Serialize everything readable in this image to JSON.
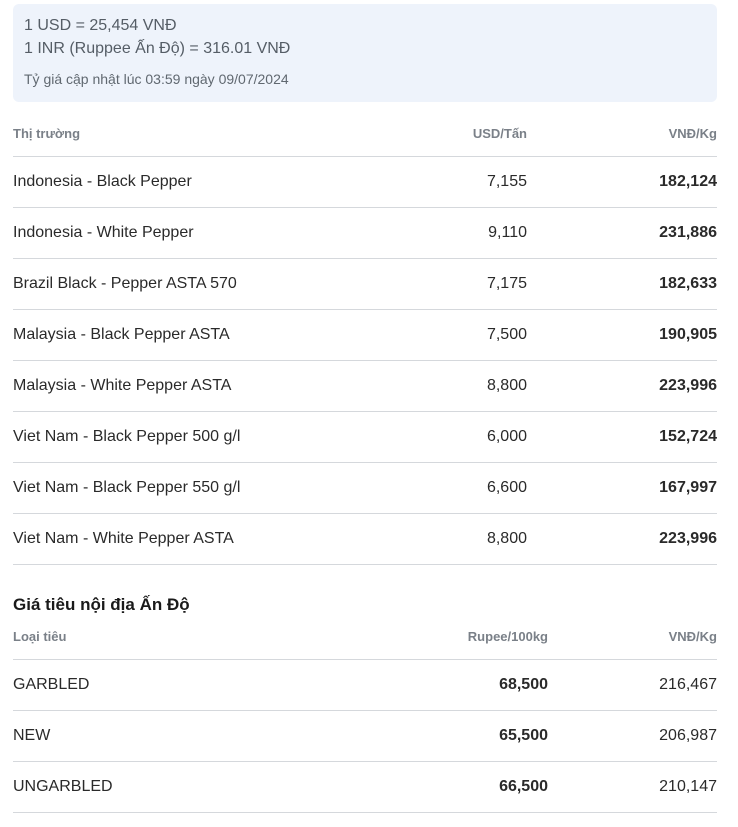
{
  "rates": {
    "usd": "1 USD = 25,454 VNĐ",
    "inr": "1 INR (Ruppee Ấn Độ) = 316.01 VNĐ",
    "updated": "Tỷ giá cập nhật lúc 03:59 ngày 09/07/2024"
  },
  "world_table": {
    "headers": {
      "market": "Thị trường",
      "usd": "USD/Tấn",
      "vnd": "VNĐ/Kg"
    },
    "rows": [
      {
        "market": "Indonesia - Black Pepper",
        "usd": "7,155",
        "vnd": "182,124"
      },
      {
        "market": "Indonesia - White Pepper",
        "usd": "9,110",
        "vnd": "231,886"
      },
      {
        "market": "Brazil Black - Pepper ASTA 570",
        "usd": "7,175",
        "vnd": "182,633"
      },
      {
        "market": "Malaysia - Black Pepper ASTA",
        "usd": "7,500",
        "vnd": "190,905"
      },
      {
        "market": "Malaysia - White Pepper ASTA",
        "usd": "8,800",
        "vnd": "223,996"
      },
      {
        "market": "Viet Nam - Black Pepper 500 g/l",
        "usd": "6,000",
        "vnd": "152,724"
      },
      {
        "market": "Viet Nam - Black Pepper 550 g/l",
        "usd": "6,600",
        "vnd": "167,997"
      },
      {
        "market": "Viet Nam - White Pepper ASTA",
        "usd": "8,800",
        "vnd": "223,996"
      }
    ]
  },
  "india_section": {
    "title": "Giá tiêu nội địa Ấn Độ",
    "headers": {
      "type": "Loại tiêu",
      "rupee": "Rupee/100kg",
      "vnd": "VNĐ/Kg"
    },
    "rows": [
      {
        "type": "GARBLED",
        "rupee": "68,500",
        "vnd": "216,467"
      },
      {
        "type": "NEW",
        "rupee": "65,500",
        "vnd": "206,987"
      },
      {
        "type": "UNGARBLED",
        "rupee": "66,500",
        "vnd": "210,147"
      }
    ]
  }
}
